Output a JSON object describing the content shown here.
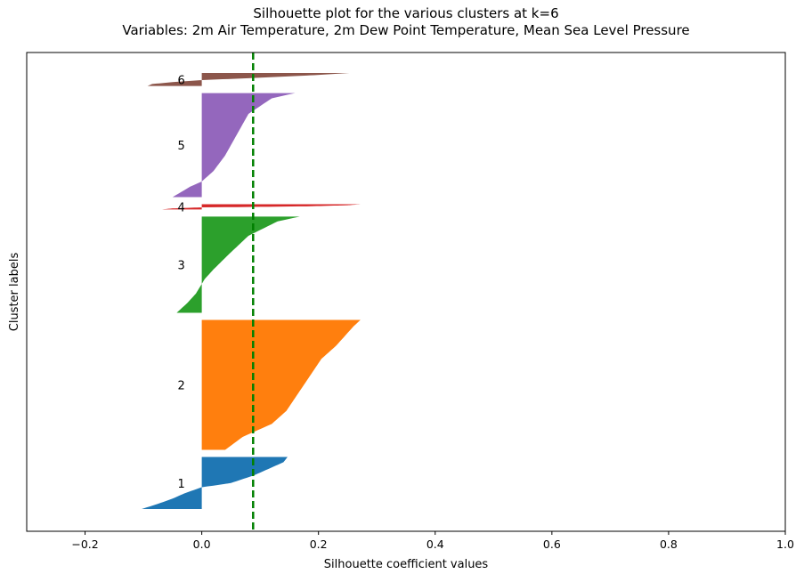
{
  "chart_data": {
    "type": "silhouette",
    "title_line1": "Silhouette plot for the various clusters at k=6",
    "title_line2": "Variables: 2m Air Temperature, 2m Dew Point Temperature, Mean Sea Level Pressure",
    "xlabel": "Silhouette coefficient values",
    "ylabel": "Cluster labels",
    "xlim": [
      -0.3,
      1.0
    ],
    "xticks": [
      -0.2,
      0.0,
      0.2,
      0.4,
      0.6,
      0.8,
      1.0
    ],
    "xtick_labels": [
      "−0.2",
      "0.0",
      "0.2",
      "0.4",
      "0.6",
      "0.8",
      "1.0"
    ],
    "yticks_shown": false,
    "average_silhouette": 0.088,
    "average_line_color": "#008000",
    "clusters": [
      {
        "label": "1",
        "size": 100,
        "color": "#1f77b4",
        "profile": [
          [
            0,
            0.147
          ],
          [
            0.1,
            0.14
          ],
          [
            0.2,
            0.12
          ],
          [
            0.35,
            0.09
          ],
          [
            0.5,
            0.05
          ],
          [
            0.55,
            0.02
          ],
          [
            0.58,
            0.0
          ],
          [
            0.7,
            -0.03
          ],
          [
            0.8,
            -0.05
          ],
          [
            0.9,
            -0.075
          ],
          [
            1,
            -0.103
          ]
        ]
      },
      {
        "label": "2",
        "size": 250,
        "color": "#ff7f0e",
        "profile": [
          [
            0,
            0.272
          ],
          [
            0.05,
            0.26
          ],
          [
            0.1,
            0.25
          ],
          [
            0.2,
            0.23
          ],
          [
            0.3,
            0.205
          ],
          [
            0.4,
            0.19
          ],
          [
            0.5,
            0.175
          ],
          [
            0.6,
            0.16
          ],
          [
            0.7,
            0.145
          ],
          [
            0.8,
            0.12
          ],
          [
            0.9,
            0.07
          ],
          [
            1,
            0.04
          ]
        ]
      },
      {
        "label": "3",
        "size": 185,
        "color": "#2ca02c",
        "profile": [
          [
            0,
            0.168
          ],
          [
            0.05,
            0.13
          ],
          [
            0.2,
            0.08
          ],
          [
            0.4,
            0.045
          ],
          [
            0.55,
            0.02
          ],
          [
            0.65,
            0.005
          ],
          [
            0.7,
            0.0
          ],
          [
            0.8,
            -0.01
          ],
          [
            0.9,
            -0.025
          ],
          [
            1,
            -0.043
          ]
        ]
      },
      {
        "label": "4",
        "size": 10,
        "color": "#d62728",
        "profile": [
          [
            0,
            0.272
          ],
          [
            0.2,
            0.25
          ],
          [
            0.4,
            0.18
          ],
          [
            0.55,
            0.06
          ],
          [
            0.6,
            0.0
          ],
          [
            0.8,
            -0.05
          ],
          [
            1,
            -0.068
          ]
        ]
      },
      {
        "label": "5",
        "size": 200,
        "color": "#9467bd",
        "profile": [
          [
            0,
            0.16
          ],
          [
            0.05,
            0.12
          ],
          [
            0.2,
            0.08
          ],
          [
            0.4,
            0.06
          ],
          [
            0.6,
            0.04
          ],
          [
            0.75,
            0.02
          ],
          [
            0.85,
            0.0
          ],
          [
            0.9,
            -0.02
          ],
          [
            1,
            -0.05
          ]
        ]
      },
      {
        "label": "6",
        "size": 25,
        "color": "#8c564b",
        "profile": [
          [
            0,
            0.253
          ],
          [
            0.2,
            0.18
          ],
          [
            0.4,
            0.08
          ],
          [
            0.55,
            0.0
          ],
          [
            0.7,
            -0.05
          ],
          [
            0.85,
            -0.085
          ],
          [
            1,
            -0.093
          ]
        ]
      }
    ]
  }
}
